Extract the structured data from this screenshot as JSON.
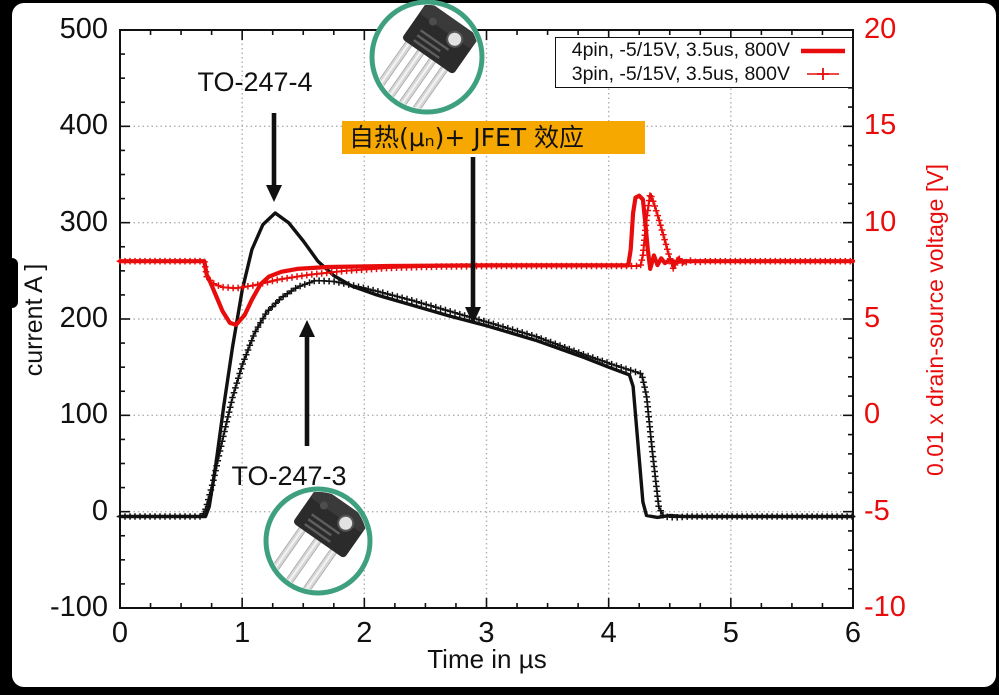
{
  "annotations": {
    "to247_4": "TO-247-4",
    "to247_3": "TO-247-3",
    "jfet": "自热(μₙ)+ JFET 效应",
    "jfet_box_color": "#F6A800"
  },
  "icons": {
    "top_package": "to-247-4-package-photo",
    "bottom_package": "to-247-3-package-photo",
    "circle_color": "#3FA080"
  },
  "colors": {
    "trace_red": "#e80c0c",
    "trace_black": "#111111",
    "grid": "#b0b0b0"
  },
  "chart_data": {
    "type": "line",
    "title": "",
    "xlabel": "Time in µs",
    "ylabel_left": "current A ]",
    "ylabel_right": "0.01 x drain-source voltage [V]",
    "xlim": [
      0,
      6
    ],
    "ylim_left": [
      -100,
      500
    ],
    "ylim_right": [
      -10,
      20
    ],
    "x_ticks": [
      0,
      1,
      2,
      3,
      4,
      5,
      6
    ],
    "left_ticks": [
      500,
      400,
      300,
      200,
      100,
      0,
      -100
    ],
    "right_ticks": [
      20,
      15,
      10,
      5,
      0,
      -5,
      -10
    ],
    "grid": true,
    "legend_position": "top-right",
    "legend": [
      {
        "label": "4pin, -5/15V, 3.5us, 800V",
        "style": "solid-line"
      },
      {
        "label": "3pin, -5/15V, 3.5us, 800V",
        "style": "plus-markers"
      }
    ],
    "series": [
      {
        "name": "4pin current",
        "axis": "left",
        "color": "#111111",
        "marker": "none",
        "width": 3.4,
        "points": [
          [
            0,
            -5
          ],
          [
            0.7,
            -5
          ],
          [
            0.73,
            5
          ],
          [
            0.78,
            45
          ],
          [
            0.85,
            110
          ],
          [
            0.92,
            170
          ],
          [
            1.0,
            230
          ],
          [
            1.08,
            272
          ],
          [
            1.17,
            298
          ],
          [
            1.27,
            310
          ],
          [
            1.38,
            300
          ],
          [
            1.5,
            281
          ],
          [
            1.62,
            260
          ],
          [
            1.75,
            245
          ],
          [
            1.9,
            234
          ],
          [
            2.1,
            225
          ],
          [
            2.4,
            214
          ],
          [
            2.7,
            203
          ],
          [
            3.0,
            193
          ],
          [
            3.4,
            178
          ],
          [
            3.8,
            160
          ],
          [
            4.0,
            150
          ],
          [
            4.17,
            142
          ],
          [
            4.2,
            130
          ],
          [
            4.24,
            70
          ],
          [
            4.28,
            10
          ],
          [
            4.31,
            -4
          ],
          [
            4.4,
            -6
          ],
          [
            4.5,
            -4
          ],
          [
            4.6,
            -5
          ],
          [
            5.0,
            -5
          ],
          [
            6.0,
            -5
          ]
        ]
      },
      {
        "name": "3pin current",
        "axis": "left",
        "color": "#111111",
        "marker": "plus",
        "width": 1.6,
        "points": [
          [
            0,
            -5
          ],
          [
            0.67,
            -5
          ],
          [
            0.7,
            2
          ],
          [
            0.76,
            30
          ],
          [
            0.84,
            75
          ],
          [
            0.92,
            118
          ],
          [
            1.0,
            152
          ],
          [
            1.1,
            185
          ],
          [
            1.2,
            207
          ],
          [
            1.32,
            222
          ],
          [
            1.45,
            233
          ],
          [
            1.6,
            240
          ],
          [
            1.75,
            239
          ],
          [
            1.9,
            235
          ],
          [
            2.1,
            229
          ],
          [
            2.4,
            219
          ],
          [
            2.7,
            208
          ],
          [
            3.0,
            197
          ],
          [
            3.4,
            182
          ],
          [
            3.8,
            163
          ],
          [
            4.05,
            152
          ],
          [
            4.27,
            143
          ],
          [
            4.31,
            120
          ],
          [
            4.36,
            60
          ],
          [
            4.41,
            5
          ],
          [
            4.45,
            -5
          ],
          [
            4.55,
            -6
          ],
          [
            4.65,
            -5
          ],
          [
            5.0,
            -5
          ],
          [
            6.0,
            -5
          ]
        ]
      },
      {
        "name": "4pin voltage",
        "axis": "right",
        "color": "#e80c0c",
        "marker": "none",
        "width": 4.2,
        "points": [
          [
            0,
            8.0
          ],
          [
            0.69,
            8.0
          ],
          [
            0.71,
            7.3
          ],
          [
            0.74,
            6.9
          ],
          [
            0.78,
            6.3
          ],
          [
            0.84,
            5.4
          ],
          [
            0.9,
            4.8
          ],
          [
            0.95,
            4.7
          ],
          [
            1.02,
            5.2
          ],
          [
            1.08,
            6.0
          ],
          [
            1.15,
            6.8
          ],
          [
            1.22,
            7.2
          ],
          [
            1.32,
            7.45
          ],
          [
            1.45,
            7.6
          ],
          [
            1.7,
            7.7
          ],
          [
            2.2,
            7.75
          ],
          [
            3.0,
            7.78
          ],
          [
            4.0,
            7.78
          ],
          [
            4.16,
            7.78
          ],
          [
            4.18,
            8.6
          ],
          [
            4.2,
            10.5
          ],
          [
            4.22,
            11.3
          ],
          [
            4.25,
            11.4
          ],
          [
            4.28,
            11.2
          ],
          [
            4.3,
            10.0
          ],
          [
            4.32,
            8.6
          ],
          [
            4.34,
            7.6
          ],
          [
            4.37,
            8.3
          ],
          [
            4.4,
            7.8
          ],
          [
            4.43,
            8.15
          ],
          [
            4.46,
            7.9
          ],
          [
            4.5,
            8.05
          ],
          [
            4.55,
            7.95
          ],
          [
            4.6,
            8.0
          ],
          [
            5.0,
            8.0
          ],
          [
            6.0,
            8.0
          ]
        ]
      },
      {
        "name": "3pin voltage",
        "axis": "right",
        "color": "#e80c0c",
        "marker": "plus",
        "width": 2.0,
        "points": [
          [
            0,
            8.0
          ],
          [
            0.69,
            8.0
          ],
          [
            0.71,
            7.2
          ],
          [
            0.76,
            6.85
          ],
          [
            0.84,
            6.65
          ],
          [
            0.95,
            6.6
          ],
          [
            1.1,
            6.75
          ],
          [
            1.3,
            7.05
          ],
          [
            1.55,
            7.3
          ],
          [
            1.85,
            7.5
          ],
          [
            2.2,
            7.65
          ],
          [
            2.6,
            7.72
          ],
          [
            3.0,
            7.75
          ],
          [
            4.0,
            7.75
          ],
          [
            4.26,
            7.75
          ],
          [
            4.28,
            8.3
          ],
          [
            4.31,
            10.2
          ],
          [
            4.34,
            11.5
          ],
          [
            4.37,
            11.0
          ],
          [
            4.41,
            10.2
          ],
          [
            4.45,
            9.3
          ],
          [
            4.49,
            8.4
          ],
          [
            4.53,
            7.6
          ],
          [
            4.57,
            8.2
          ],
          [
            4.61,
            7.85
          ],
          [
            4.66,
            8.05
          ],
          [
            4.72,
            7.95
          ],
          [
            4.8,
            8.0
          ],
          [
            5.2,
            8.0
          ],
          [
            6.0,
            8.0
          ]
        ]
      }
    ]
  }
}
